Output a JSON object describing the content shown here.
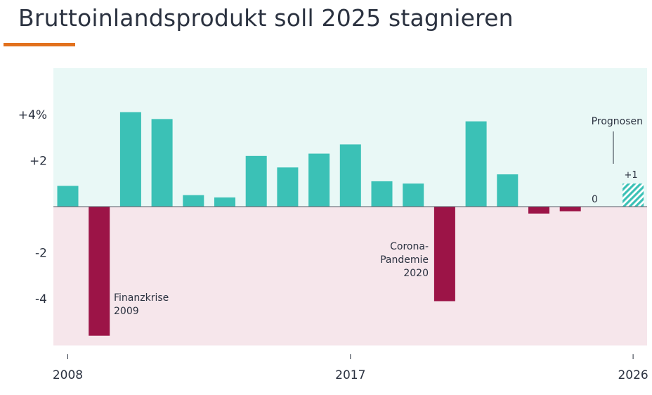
{
  "title": "Bruttoinlandsprodukt soll 2025 stagnieren",
  "colors": {
    "accent_rule": "#e2711d",
    "positive": "#3bc1b6",
    "negative": "#9c1447",
    "bg_positive": "#e9f8f6",
    "bg_negative": "#f6e6eb",
    "text": "#2b3240"
  },
  "chart_data": {
    "type": "bar",
    "title": "Bruttoinlandsprodukt soll 2025 stagnieren",
    "xlabel": "",
    "ylabel": "",
    "ylim": [
      -6,
      6
    ],
    "categories": [
      "2008",
      "2009",
      "2010",
      "2011",
      "2012",
      "2013",
      "2014",
      "2015",
      "2016",
      "2017",
      "2018",
      "2019",
      "2020",
      "2021",
      "2022",
      "2023",
      "2024",
      "2025",
      "2026"
    ],
    "values": [
      0.9,
      -5.6,
      4.1,
      3.8,
      0.5,
      0.4,
      2.2,
      1.7,
      2.3,
      2.7,
      1.1,
      1.0,
      -4.1,
      3.7,
      1.4,
      -0.3,
      -0.2,
      0,
      1.0
    ],
    "forecast_from": "2025",
    "y_ticks": [
      {
        "value": 4,
        "label": "+4%"
      },
      {
        "value": 2,
        "label": "+2"
      },
      {
        "value": -2,
        "label": "-2"
      },
      {
        "value": -4,
        "label": "-4"
      }
    ],
    "x_ticks": [
      {
        "category": "2008",
        "label": "2008"
      },
      {
        "category": "2017",
        "label": "2017"
      },
      {
        "category": "2026",
        "label": "2026"
      }
    ],
    "annotations": {
      "finanzkrise": [
        "Finanzkrise",
        "2009"
      ],
      "corona": [
        "Corona-",
        "Pandemie",
        "2020"
      ],
      "prognosen": "Prognosen",
      "label_2025": "0",
      "label_2026": "+1"
    }
  }
}
